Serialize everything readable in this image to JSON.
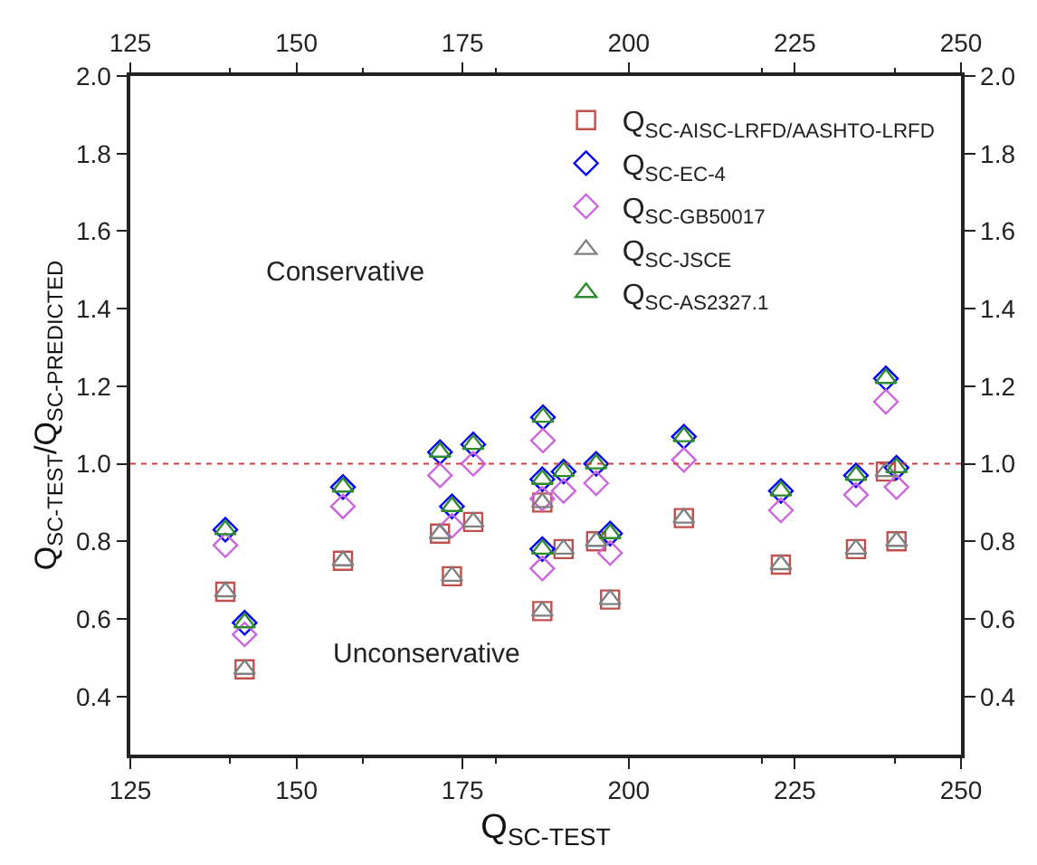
{
  "chart_data": {
    "type": "scatter",
    "xlabel": "Q$_{SC-TEST}$",
    "ylabel": "Q$_{SC-TEST}$/Q$_{SC-PREDICTED}$",
    "annotations": [
      "Conservative",
      "Unconservative"
    ],
    "x": [
      139.3,
      142.2,
      157,
      171.6,
      173.4,
      176.6,
      187.1,
      187,
      187,
      190.2,
      195.1,
      197.2,
      208.3,
      222.9,
      234.2,
      238.7,
      240.3
    ],
    "series": [
      {
        "name": "Q$_{SC-AISC-LRFD/AASHTO-LRFD}$",
        "color": "#c0504d",
        "marker": "square",
        "values": [
          0.67,
          0.47,
          0.75,
          0.82,
          0.71,
          0.85,
          null,
          0.9,
          0.62,
          0.78,
          0.8,
          0.65,
          0.86,
          0.74,
          0.78,
          0.98,
          0.8
        ]
      },
      {
        "name": "Q$_{SC-EC-4}$",
        "color": "#0000ff",
        "marker": "diamond",
        "values": [
          0.83,
          0.59,
          0.94,
          1.03,
          0.89,
          1.05,
          1.12,
          0.96,
          0.78,
          0.98,
          1.0,
          0.82,
          1.07,
          0.93,
          0.97,
          1.22,
          0.99
        ]
      },
      {
        "name": "Q$_{SC-GB50017}$",
        "color": "#cc66dd",
        "marker": "diamond",
        "values": [
          0.79,
          0.56,
          0.89,
          0.97,
          0.84,
          1.0,
          1.06,
          0.91,
          0.73,
          0.93,
          0.95,
          0.77,
          1.01,
          0.88,
          0.92,
          1.16,
          0.94
        ]
      },
      {
        "name": "Q$_{SC-JSCE}$",
        "color": "#808080",
        "marker": "triangle",
        "values": [
          0.67,
          0.47,
          0.75,
          0.82,
          0.71,
          0.85,
          null,
          0.9,
          0.62,
          0.78,
          0.8,
          0.65,
          0.86,
          0.74,
          0.78,
          0.98,
          0.8
        ]
      },
      {
        "name": "Q$_{SC-AS2327.1}$",
        "color": "#2e8b2e",
        "marker": "triangle",
        "values": [
          0.83,
          0.59,
          0.94,
          1.03,
          0.89,
          1.05,
          1.12,
          0.96,
          0.78,
          0.98,
          1.0,
          0.82,
          1.07,
          0.93,
          0.97,
          1.22,
          0.99
        ]
      }
    ],
    "xlim": [
      125,
      250
    ],
    "xticks": [
      125,
      150,
      175,
      200,
      225,
      250
    ],
    "x2lim": [
      125,
      250
    ],
    "x2ticks": [
      125,
      150,
      175,
      200,
      225,
      250
    ],
    "ylim": [
      0.25,
      2.0
    ],
    "yticks": [
      0.4,
      0.6,
      0.8,
      {
        "value": 1,
        "label": "1.0"
      },
      1.2,
      1.4,
      1.6,
      1.8,
      {
        "value": 2,
        "label": "2.0"
      }
    ],
    "y2lim": [
      0.25,
      2.0
    ],
    "y2ticks": [
      0.4,
      0.6,
      0.8,
      {
        "value": 1,
        "label": "1.0"
      },
      1.2,
      1.4,
      1.6,
      1.8,
      {
        "value": 2,
        "label": "2.0"
      }
    ],
    "ref_lines": [
      {
        "axis": "y",
        "value": 1.0,
        "label": null,
        "color": "#d04040",
        "line_style": "dotted"
      }
    ],
    "legend": "top right"
  }
}
